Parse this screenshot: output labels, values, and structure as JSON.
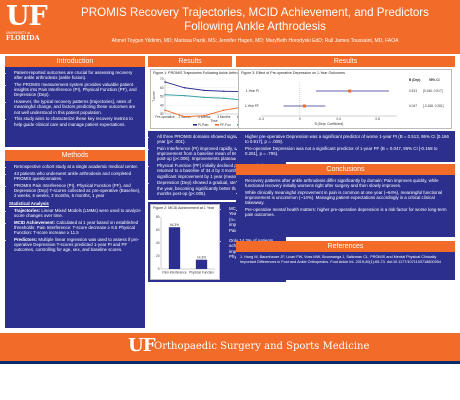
{
  "header": {
    "logo_uf": "UF",
    "logo_univ": "UNIVERSITY of",
    "logo_florida": "FLORIDA",
    "title": "PROMIS Recovery Trajectories, MCID Achievement, and Predictors Following Ankle Arthrodesis",
    "authors": "Ahmet Toygun Yildirim, MD; Marissa Pazik, MS; Jennifer Hagen, MD; MaryBeth Horodyski EdD; Rull James Toussaint, MD, FAOA"
  },
  "introduction": {
    "title": "Introduction",
    "bullets": [
      "Patient-reported outcomes are crucial for assessing recovery after ankle arthrodesis (ankle fusion).",
      "The PROMIS measurement system provides valuable patient insights into Pain Interference (PI), Physical Function (PF), and Depression (Dep).",
      "However, the typical recovery patterns (trajectories), rates of meaningful change, and factors predicting these outcomes are not well understood in this patient population.",
      "This study aims to characterize these key recovery metrics to help guide clinical care and manage patient expectations."
    ]
  },
  "methods": {
    "title": "Methods",
    "bullets": [
      "Retrospective cohort study at a single academic medical center.",
      "43 patients who underwent ankle arthrodesis and completed PROMIS questionnaires.",
      "PROMIS Pain Interference (PI), Physical Function (PF), and Depression (Dep) T-scores collected at: pre-operative (Baseline), 2 weeks, 6 weeks, 3 months, 6 months, 1 year"
    ],
    "stats_head": "Statistical Analysis",
    "stats": [
      {
        "label": "Trajectories:",
        "text": "Linear Mixed Models (LMMs) were used to analyze score changes over time."
      },
      {
        "label": "MCID Achievement:",
        "text": "Calculated at 1 year based on established thresholds: Pain Interference: T-score decrease ≥ 8.5 Physical Function: T-score increase ≥ 11.5"
      },
      {
        "label": "Predictors:",
        "text": "Multiple linear regression was used to assess if pre-operative Depression T-scores predicted 1-year PI and PF outcomes, controlling for age, sex, and baseline scores."
      }
    ]
  },
  "results": {
    "title": "Results",
    "fig1_caption": "Figure 1: PROMIS Trajectories Following Ankle Arthrodesis",
    "fig2_caption": "Figure 2: MCID Achievement at 1 Year",
    "fig3_caption": "Figure 3: Effect of Pre-operative Depression on 1-Year Outcomes",
    "bullets_mid": [
      "All three PROMIS domains showed significant change over one year (p< .001).",
      "Pain Interference (PI) improved rapidly, showing significant improvement from a baseline mean of 66.7 by just 2 weeks post-op (p<.006). Improvements plateaued after 6 weeks.",
      "Physical Function (PF) initially declined post-operatively, returned to a baseline of 34.4 by 3 months, and showed significant improvement by 1 year (mean=41.1, p=.002).",
      "Depression (Dep) showed a gradual, steady improvement over the year, becoming significantly better than baseline by 6 months post-op (p<.005)."
    ],
    "mcid_bullets": [
      "MCID Achievement at 1 Year 64.3% of patients (n=14) achieved a clinically important improvement in Pain Interference.",
      "Only 14.3% of patients achieved a clinically important improvement in Physical Function."
    ],
    "bullets_right": [
      "Higher pre-operative Depression was a significant predictor of worse 1-year PI (B = 0.513, 95% CI [0.166 to 0.917], p = .009).",
      "Pre-operative Depression was not a significant predictor of 1-year PF (B = 0.047, 95% CI [-0.168 to 0.261], p = .795)."
    ]
  },
  "conclusions": {
    "title": "Conclusions",
    "bullets": [
      "Recovery patterns after ankle arthrodesis differ significantly by domain: Pain improves quickly, while functional recovery initially worsens right after surgery and then slowly improves.",
      "While clinically meaningful improvement in pain is common at one year (~64%), meaningful functional improvement is uncommon (~14%). Managing patient expectations accordingly is a critical clinical takeaway.",
      "Pre-operative mental health matters: higher pre-operative depression is a risk factor for worse long-term pain outcomes."
    ]
  },
  "references": {
    "title": "References",
    "items": [
      "1. Hung M, Baumhauer JF, Licari FW, Voss MW, Bounsanga J, Saltzman CL. PROMIS and Mental Physical Clinically Important Differences in Foot and Ankle Orthopedics. Foot Ankle Int. 2019;40(1):65-73. doi:10.1177/1071100718800304"
    ]
  },
  "footer": {
    "logo": "UF",
    "text": "Orthopaedic Surgery and Sports Medicine"
  },
  "chart_data": [
    {
      "type": "line",
      "title": "Figure 1: PROMIS Trajectories Following Ankle Arthrodesis",
      "categories": [
        "Pre-operative",
        "2 Weeks",
        "6 Weeks",
        "3 Months",
        "6 Months",
        "1 Year"
      ],
      "xlabel": "Time",
      "ylabel": "T-score",
      "ylim": [
        30,
        70
      ],
      "series": [
        {
          "name": "PI-Pain",
          "color": "#2c2f8e",
          "values": [
            66.7,
            60,
            57,
            56,
            55.5,
            55
          ]
        },
        {
          "name": "PF-Fun",
          "color": "#f26b29",
          "values": [
            34.4,
            27,
            28,
            34.4,
            38,
            41.1
          ]
        },
        {
          "name": "Dep",
          "color": "#3aa0a6",
          "values": [
            52,
            51,
            49,
            48,
            46,
            45
          ]
        }
      ],
      "legend": "bottom"
    },
    {
      "type": "bar",
      "title": "Figure 2: MCID Achievement at 1 Year",
      "categories": [
        "Pain Interference",
        "Physical Function"
      ],
      "values": [
        64.3,
        14.3
      ],
      "ylabel": "%",
      "ylim": [
        0,
        80
      ],
      "color": "#2c2f8e"
    },
    {
      "type": "scatter",
      "title": "Figure 3: Effect of Pre-operative Depression on 1-Year Outcomes",
      "categories": [
        "1-Year PI",
        "1-Year PF"
      ],
      "values": [
        0.513,
        0.047
      ],
      "ci": [
        [
          0.166,
          0.917
        ],
        [
          -0.168,
          0.261
        ]
      ],
      "xlabel": "B (Depr. Coefficient)",
      "xlim": [
        -0.4,
        1.0
      ],
      "table_head": [
        "B (Dep)",
        "95% CI"
      ],
      "table": [
        [
          "0.513",
          "[0.166, 0.917]"
        ],
        [
          "0.047",
          "[-0.168, 0.261]"
        ]
      ]
    }
  ]
}
